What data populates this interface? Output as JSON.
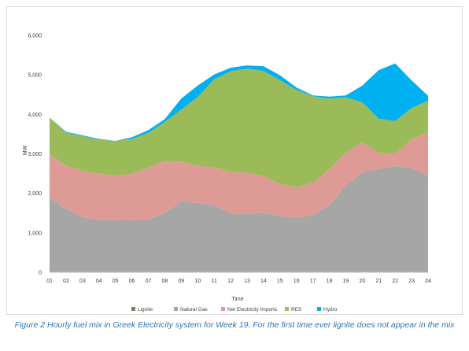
{
  "chart_data": {
    "type": "area",
    "stacked": true,
    "xlabel": "Time",
    "ylabel": "MW",
    "ylim": [
      0,
      6000
    ],
    "yticks": [
      0,
      1000,
      2000,
      3000,
      4000,
      5000,
      6000
    ],
    "ytick_labels": [
      "0",
      "1,000",
      "2,000",
      "3,000",
      "4,000",
      "5,000",
      "6,000"
    ],
    "categories": [
      "01",
      "02",
      "03",
      "04",
      "05",
      "06",
      "07",
      "08",
      "09",
      "10",
      "11",
      "12",
      "13",
      "14",
      "15",
      "16",
      "17",
      "18",
      "19",
      "20",
      "21",
      "22",
      "23",
      "24"
    ],
    "grid": false,
    "legend_position": "bottom",
    "series": [
      {
        "name": "Lignite",
        "color": "#8c7a55",
        "values": [
          0,
          0,
          0,
          0,
          0,
          0,
          0,
          0,
          0,
          0,
          0,
          0,
          0,
          0,
          0,
          0,
          0,
          0,
          0,
          0,
          0,
          0,
          0,
          0
        ]
      },
      {
        "name": "Natural Gas",
        "color": "#a6a6a6",
        "values": [
          1900,
          1600,
          1400,
          1330,
          1330,
          1320,
          1340,
          1500,
          1800,
          1760,
          1700,
          1500,
          1480,
          1510,
          1430,
          1380,
          1450,
          1700,
          2200,
          2530,
          2620,
          2690,
          2650,
          2440
        ]
      },
      {
        "name": "Net Electricity Imports",
        "color": "#de9a95",
        "values": [
          1100,
          1100,
          1170,
          1170,
          1120,
          1180,
          1310,
          1320,
          1000,
          940,
          960,
          1040,
          1050,
          930,
          810,
          770,
          820,
          900,
          830,
          770,
          400,
          320,
          720,
          1120
        ]
      },
      {
        "name": "RES",
        "color": "#9bbb59",
        "values": [
          920,
          840,
          880,
          860,
          880,
          880,
          880,
          990,
          1320,
          1740,
          2230,
          2550,
          2630,
          2660,
          2630,
          2470,
          2190,
          1800,
          1400,
          1010,
          870,
          820,
          790,
          790
        ]
      },
      {
        "name": "Hydro",
        "color": "#00b0f0",
        "values": [
          0,
          20,
          20,
          20,
          0,
          40,
          70,
          70,
          280,
          290,
          120,
          90,
          80,
          120,
          120,
          60,
          20,
          50,
          50,
          420,
          1230,
          1460,
          700,
          120
        ]
      }
    ]
  },
  "caption": "Figure 2 Hourly fuel mix in Greek Electricity system for Week 19. For the first time ever lignite does not appear in the mix"
}
